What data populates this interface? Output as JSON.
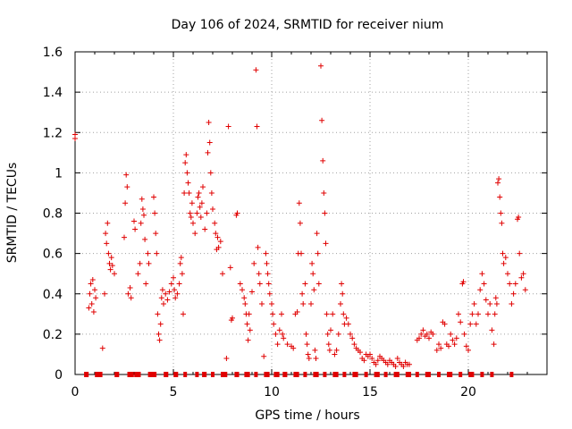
{
  "chart_data": {
    "type": "scatter",
    "title": "Day 106 of 2024, SRMTID for receiver nium",
    "xlabel": "GPS time / hours",
    "ylabel": "SRMTID / TECUs",
    "xlim": [
      0,
      24
    ],
    "ylim": [
      0,
      1.6
    ],
    "xticks": [
      "0",
      "5",
      "10",
      "15",
      "20"
    ],
    "xtick_values": [
      0,
      5,
      10,
      15,
      20
    ],
    "yticks": [
      "0",
      "0.2",
      "0.4",
      "0.6",
      "0.8",
      "1",
      "1.2",
      "1.4",
      "1.6"
    ],
    "ytick_values": [
      0,
      0.2,
      0.4,
      0.6,
      0.8,
      1.0,
      1.2,
      1.4,
      1.6
    ],
    "grid": true,
    "marker": "+",
    "color": "#e00000",
    "series": [
      {
        "name": "SRMTID",
        "points": [
          [
            0.0,
            1.17
          ],
          [
            0.0,
            1.19
          ],
          [
            0.7,
            0.33
          ],
          [
            0.75,
            0.4
          ],
          [
            0.8,
            0.45
          ],
          [
            0.85,
            0.35
          ],
          [
            0.9,
            0.47
          ],
          [
            0.95,
            0.31
          ],
          [
            1.0,
            0.42
          ],
          [
            1.05,
            0.38
          ],
          [
            1.4,
            0.13
          ],
          [
            1.5,
            0.4
          ],
          [
            1.55,
            0.7
          ],
          [
            1.6,
            0.65
          ],
          [
            1.65,
            0.75
          ],
          [
            1.7,
            0.6
          ],
          [
            1.75,
            0.55
          ],
          [
            1.8,
            0.52
          ],
          [
            1.85,
            0.58
          ],
          [
            1.9,
            0.54
          ],
          [
            2.0,
            0.5
          ],
          [
            2.5,
            0.68
          ],
          [
            2.55,
            0.85
          ],
          [
            2.6,
            0.99
          ],
          [
            2.65,
            0.93
          ],
          [
            2.7,
            0.4
          ],
          [
            2.8,
            0.43
          ],
          [
            2.85,
            0.38
          ],
          [
            3.0,
            0.76
          ],
          [
            3.05,
            0.72
          ],
          [
            3.2,
            0.5
          ],
          [
            3.3,
            0.55
          ],
          [
            3.35,
            0.75
          ],
          [
            3.4,
            0.87
          ],
          [
            3.45,
            0.82
          ],
          [
            3.5,
            0.79
          ],
          [
            3.55,
            0.67
          ],
          [
            3.6,
            0.45
          ],
          [
            3.7,
            0.6
          ],
          [
            3.75,
            0.55
          ],
          [
            4.0,
            0.88
          ],
          [
            4.05,
            0.8
          ],
          [
            4.1,
            0.7
          ],
          [
            4.15,
            0.6
          ],
          [
            4.2,
            0.3
          ],
          [
            4.25,
            0.2
          ],
          [
            4.3,
            0.17
          ],
          [
            4.35,
            0.25
          ],
          [
            4.4,
            0.38
          ],
          [
            4.45,
            0.42
          ],
          [
            4.5,
            0.35
          ],
          [
            4.6,
            0.4
          ],
          [
            4.7,
            0.37
          ],
          [
            4.8,
            0.41
          ],
          [
            4.9,
            0.45
          ],
          [
            5.0,
            0.48
          ],
          [
            5.05,
            0.42
          ],
          [
            5.1,
            0.38
          ],
          [
            5.2,
            0.4
          ],
          [
            5.3,
            0.45
          ],
          [
            5.35,
            0.55
          ],
          [
            5.4,
            0.58
          ],
          [
            5.45,
            0.5
          ],
          [
            5.5,
            0.3
          ],
          [
            5.55,
            0.9
          ],
          [
            5.6,
            1.05
          ],
          [
            5.65,
            1.09
          ],
          [
            5.7,
            1.0
          ],
          [
            5.75,
            0.95
          ],
          [
            5.8,
            0.9
          ],
          [
            5.85,
            0.8
          ],
          [
            5.9,
            0.78
          ],
          [
            5.95,
            0.85
          ],
          [
            6.0,
            0.75
          ],
          [
            6.1,
            0.7
          ],
          [
            6.2,
            0.8
          ],
          [
            6.25,
            0.88
          ],
          [
            6.3,
            0.9
          ],
          [
            6.35,
            0.83
          ],
          [
            6.4,
            0.78
          ],
          [
            6.45,
            0.85
          ],
          [
            6.5,
            0.93
          ],
          [
            6.6,
            0.72
          ],
          [
            6.7,
            0.8
          ],
          [
            6.75,
            1.1
          ],
          [
            6.8,
            1.25
          ],
          [
            6.85,
            1.15
          ],
          [
            6.9,
            1.0
          ],
          [
            6.95,
            0.9
          ],
          [
            7.0,
            0.82
          ],
          [
            7.1,
            0.75
          ],
          [
            7.15,
            0.7
          ],
          [
            7.2,
            0.62
          ],
          [
            7.25,
            0.68
          ],
          [
            7.3,
            0.63
          ],
          [
            7.4,
            0.66
          ],
          [
            7.5,
            0.5
          ],
          [
            7.7,
            0.08
          ],
          [
            7.8,
            1.23
          ],
          [
            7.9,
            0.53
          ],
          [
            7.95,
            0.27
          ],
          [
            8.0,
            0.28
          ],
          [
            8.2,
            0.79
          ],
          [
            8.25,
            0.8
          ],
          [
            8.4,
            0.45
          ],
          [
            8.5,
            0.42
          ],
          [
            8.6,
            0.38
          ],
          [
            8.65,
            0.35
          ],
          [
            8.7,
            0.3
          ],
          [
            8.75,
            0.25
          ],
          [
            8.8,
            0.17
          ],
          [
            8.85,
            0.3
          ],
          [
            8.9,
            0.22
          ],
          [
            9.0,
            0.41
          ],
          [
            9.1,
            0.55
          ],
          [
            9.2,
            1.51
          ],
          [
            9.25,
            1.23
          ],
          [
            9.3,
            0.63
          ],
          [
            9.35,
            0.5
          ],
          [
            9.4,
            0.45
          ],
          [
            9.5,
            0.35
          ],
          [
            9.6,
            0.09
          ],
          [
            9.7,
            0.6
          ],
          [
            9.75,
            0.55
          ],
          [
            9.8,
            0.5
          ],
          [
            9.85,
            0.45
          ],
          [
            9.9,
            0.4
          ],
          [
            10.0,
            0.35
          ],
          [
            10.05,
            0.3
          ],
          [
            10.1,
            0.25
          ],
          [
            10.2,
            0.2
          ],
          [
            10.3,
            0.15
          ],
          [
            10.4,
            0.22
          ],
          [
            10.5,
            0.3
          ],
          [
            10.55,
            0.2
          ],
          [
            10.6,
            0.18
          ],
          [
            10.8,
            0.15
          ],
          [
            11.0,
            0.14
          ],
          [
            11.1,
            0.13
          ],
          [
            11.2,
            0.3
          ],
          [
            11.3,
            0.31
          ],
          [
            11.35,
            0.6
          ],
          [
            11.4,
            0.85
          ],
          [
            11.45,
            0.75
          ],
          [
            11.5,
            0.6
          ],
          [
            11.55,
            0.4
          ],
          [
            11.6,
            0.35
          ],
          [
            11.7,
            0.45
          ],
          [
            11.75,
            0.2
          ],
          [
            11.8,
            0.15
          ],
          [
            11.85,
            0.1
          ],
          [
            11.9,
            0.08
          ],
          [
            12.0,
            0.35
          ],
          [
            12.05,
            0.55
          ],
          [
            12.1,
            0.5
          ],
          [
            12.15,
            0.42
          ],
          [
            12.2,
            0.12
          ],
          [
            12.25,
            0.08
          ],
          [
            12.3,
            0.7
          ],
          [
            12.35,
            0.6
          ],
          [
            12.4,
            0.45
          ],
          [
            12.5,
            1.53
          ],
          [
            12.55,
            1.26
          ],
          [
            12.6,
            1.06
          ],
          [
            12.65,
            0.9
          ],
          [
            12.7,
            0.8
          ],
          [
            12.75,
            0.65
          ],
          [
            12.8,
            0.3
          ],
          [
            12.85,
            0.2
          ],
          [
            12.9,
            0.15
          ],
          [
            12.95,
            0.12
          ],
          [
            13.0,
            0.22
          ],
          [
            13.1,
            0.3
          ],
          [
            13.2,
            0.1
          ],
          [
            13.3,
            0.12
          ],
          [
            13.4,
            0.2
          ],
          [
            13.5,
            0.35
          ],
          [
            13.55,
            0.45
          ],
          [
            13.6,
            0.4
          ],
          [
            13.65,
            0.3
          ],
          [
            13.7,
            0.25
          ],
          [
            13.8,
            0.28
          ],
          [
            13.9,
            0.25
          ],
          [
            14.0,
            0.2
          ],
          [
            14.1,
            0.18
          ],
          [
            14.2,
            0.15
          ],
          [
            14.3,
            0.13
          ],
          [
            14.4,
            0.12
          ],
          [
            14.5,
            0.11
          ],
          [
            14.6,
            0.08
          ],
          [
            14.7,
            0.07
          ],
          [
            14.8,
            0.1
          ],
          [
            14.9,
            0.09
          ],
          [
            15.0,
            0.1
          ],
          [
            15.1,
            0.08
          ],
          [
            15.2,
            0.06
          ],
          [
            15.3,
            0.05
          ],
          [
            15.4,
            0.07
          ],
          [
            15.5,
            0.09
          ],
          [
            15.6,
            0.08
          ],
          [
            15.7,
            0.07
          ],
          [
            15.8,
            0.06
          ],
          [
            15.9,
            0.05
          ],
          [
            16.0,
            0.07
          ],
          [
            16.1,
            0.06
          ],
          [
            16.2,
            0.05
          ],
          [
            16.3,
            0.04
          ],
          [
            16.4,
            0.08
          ],
          [
            16.5,
            0.06
          ],
          [
            16.6,
            0.05
          ],
          [
            16.7,
            0.04
          ],
          [
            16.8,
            0.06
          ],
          [
            16.9,
            0.05
          ],
          [
            17.0,
            0.05
          ],
          [
            17.4,
            0.17
          ],
          [
            17.5,
            0.18
          ],
          [
            17.6,
            0.2
          ],
          [
            17.7,
            0.22
          ],
          [
            17.8,
            0.19
          ],
          [
            17.9,
            0.2
          ],
          [
            18.0,
            0.18
          ],
          [
            18.1,
            0.21
          ],
          [
            18.2,
            0.2
          ],
          [
            18.4,
            0.12
          ],
          [
            18.5,
            0.15
          ],
          [
            18.6,
            0.13
          ],
          [
            18.7,
            0.26
          ],
          [
            18.8,
            0.25
          ],
          [
            18.9,
            0.15
          ],
          [
            19.0,
            0.14
          ],
          [
            19.1,
            0.2
          ],
          [
            19.2,
            0.17
          ],
          [
            19.3,
            0.15
          ],
          [
            19.4,
            0.18
          ],
          [
            19.5,
            0.3
          ],
          [
            19.6,
            0.26
          ],
          [
            19.7,
            0.45
          ],
          [
            19.75,
            0.46
          ],
          [
            19.8,
            0.2
          ],
          [
            19.9,
            0.14
          ],
          [
            20.0,
            0.12
          ],
          [
            20.1,
            0.25
          ],
          [
            20.2,
            0.3
          ],
          [
            20.3,
            0.35
          ],
          [
            20.4,
            0.25
          ],
          [
            20.5,
            0.3
          ],
          [
            20.6,
            0.42
          ],
          [
            20.7,
            0.5
          ],
          [
            20.8,
            0.45
          ],
          [
            20.9,
            0.37
          ],
          [
            21.0,
            0.3
          ],
          [
            21.1,
            0.35
          ],
          [
            21.2,
            0.22
          ],
          [
            21.3,
            0.15
          ],
          [
            21.35,
            0.3
          ],
          [
            21.4,
            0.38
          ],
          [
            21.45,
            0.35
          ],
          [
            21.5,
            0.95
          ],
          [
            21.55,
            0.97
          ],
          [
            21.6,
            0.88
          ],
          [
            21.65,
            0.8
          ],
          [
            21.7,
            0.75
          ],
          [
            21.75,
            0.6
          ],
          [
            21.8,
            0.55
          ],
          [
            21.9,
            0.58
          ],
          [
            22.0,
            0.5
          ],
          [
            22.1,
            0.45
          ],
          [
            22.2,
            0.35
          ],
          [
            22.3,
            0.4
          ],
          [
            22.4,
            0.45
          ],
          [
            22.5,
            0.77
          ],
          [
            22.55,
            0.78
          ],
          [
            22.6,
            0.6
          ],
          [
            22.7,
            0.48
          ],
          [
            22.8,
            0.5
          ],
          [
            22.9,
            0.42
          ]
        ]
      }
    ],
    "zero_markers_x": [
      0.55,
      0.6,
      1.1,
      1.15,
      1.3,
      2.1,
      2.15,
      2.75,
      2.9,
      3.1,
      3.25,
      3.8,
      3.9,
      4.05,
      4.6,
      4.65,
      5.1,
      5.15,
      5.6,
      6.2,
      6.55,
      6.6,
      7.0,
      7.5,
      7.65,
      8.2,
      8.25,
      8.7,
      8.8,
      9.2,
      9.7,
      9.8,
      10.2,
      10.3,
      10.65,
      10.7,
      11.2,
      11.3,
      11.7,
      12.2,
      12.3,
      12.7,
      13.2,
      13.3,
      13.7,
      14.2,
      14.3,
      14.8,
      15.3,
      15.4,
      15.8,
      16.3,
      16.4,
      16.9,
      17.0,
      17.4,
      17.9,
      18.0,
      18.5,
      19.0,
      19.1,
      19.6,
      20.1,
      20.2,
      20.7,
      21.2,
      22.2
    ]
  }
}
